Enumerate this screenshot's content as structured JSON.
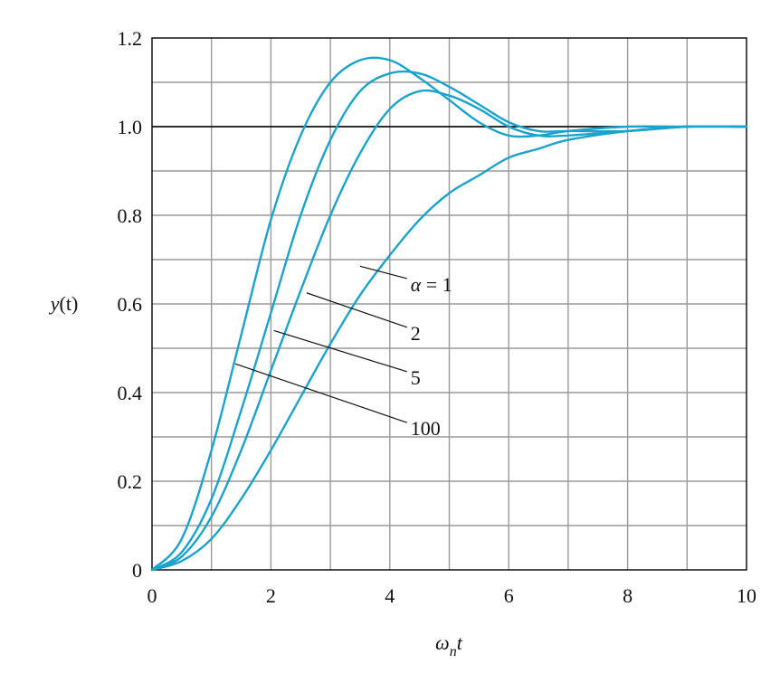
{
  "chart_data": {
    "type": "line",
    "xlabel": {
      "main": "ω",
      "sub": "n",
      "tail": "t"
    },
    "ylabel": {
      "main": "y",
      "tail": "(t)"
    },
    "xlim": [
      0,
      10
    ],
    "ylim": [
      0,
      1.2
    ],
    "xticks": [
      "0",
      "2",
      "4",
      "6",
      "8",
      "10"
    ],
    "yticks": [
      "0",
      "0.2",
      "0.4",
      "0.6",
      "0.8",
      "1.0",
      "1.2"
    ],
    "grid": true,
    "grid_minor_x": 1,
    "grid_minor_y": 0.1,
    "reference_line": 1.0,
    "colors": {
      "curve": "#1aa3cc",
      "grid": "#9a9a9a",
      "axis": "#111111"
    },
    "series": [
      {
        "name": "α = 1",
        "x": [
          0,
          0.5,
          1,
          1.5,
          2,
          2.5,
          3,
          3.5,
          4,
          4.5,
          5,
          5.5,
          6,
          6.5,
          7,
          8,
          9,
          10
        ],
        "y": [
          0,
          0.02,
          0.07,
          0.16,
          0.27,
          0.39,
          0.51,
          0.62,
          0.71,
          0.79,
          0.85,
          0.89,
          0.93,
          0.95,
          0.97,
          0.99,
          1.0,
          1.0
        ]
      },
      {
        "name": "2",
        "x": [
          0,
          0.5,
          1,
          1.5,
          2,
          2.5,
          3,
          3.5,
          4,
          4.5,
          5,
          5.5,
          6,
          6.5,
          7,
          8,
          9,
          10
        ],
        "y": [
          0,
          0.03,
          0.12,
          0.27,
          0.45,
          0.63,
          0.8,
          0.94,
          1.04,
          1.08,
          1.07,
          1.04,
          1.0,
          0.98,
          0.98,
          0.99,
          1.0,
          1.0
        ]
      },
      {
        "name": "5",
        "x": [
          0,
          0.5,
          1,
          1.5,
          2,
          2.5,
          3,
          3.5,
          4,
          4.5,
          5,
          5.5,
          6,
          6.5,
          7,
          8,
          9,
          10
        ],
        "y": [
          0,
          0.04,
          0.16,
          0.36,
          0.58,
          0.8,
          0.97,
          1.08,
          1.12,
          1.12,
          1.09,
          1.05,
          1.01,
          0.99,
          0.99,
          0.99,
          1.0,
          1.0
        ]
      },
      {
        "name": "100",
        "x": [
          0,
          0.5,
          1,
          1.5,
          2,
          2.5,
          3,
          3.5,
          4,
          4.5,
          5,
          5.5,
          6,
          6.5,
          7,
          8,
          9,
          10
        ],
        "y": [
          0,
          0.07,
          0.27,
          0.53,
          0.79,
          0.98,
          1.1,
          1.15,
          1.15,
          1.11,
          1.06,
          1.01,
          0.98,
          0.98,
          0.99,
          1.0,
          1.0,
          1.0
        ]
      }
    ],
    "annotations": [
      {
        "prefix": "α",
        "text": " = 1",
        "series": 0,
        "at": [
          3.5,
          0.685
        ],
        "label_at": [
          4.35,
          0.645
        ]
      },
      {
        "prefix": "",
        "text": "2",
        "series": 1,
        "at": [
          2.6,
          0.625
        ],
        "label_at": [
          4.35,
          0.535
        ]
      },
      {
        "prefix": "",
        "text": "5",
        "series": 2,
        "at": [
          2.05,
          0.54
        ],
        "label_at": [
          4.35,
          0.435
        ]
      },
      {
        "prefix": "",
        "text": "100",
        "series": 3,
        "at": [
          1.4,
          0.465
        ],
        "label_at": [
          4.35,
          0.32
        ]
      }
    ]
  }
}
